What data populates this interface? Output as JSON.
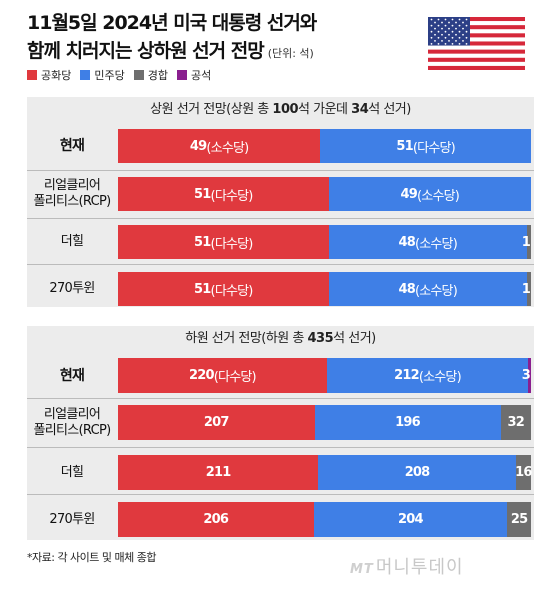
{
  "title_line1": "11월5일 2024년 미국 대통령 선거와",
  "title_line2": "함께 치러지는 상하원 선거 전망",
  "unit": "(단위: 석)",
  "legend": [
    {
      "label": "공화당",
      "color": "#e0393e"
    },
    {
      "label": "민주당",
      "color": "#3f7fe6"
    },
    {
      "label": "경합",
      "color": "#6e6e6e"
    },
    {
      "label": "공석",
      "color": "#8a1f8f"
    }
  ],
  "colors": {
    "rep": "#e0393e",
    "dem": "#3f7fe6",
    "toss": "#6e6e6e",
    "vacant": "#8a1f8f"
  },
  "chart_data": [
    {
      "type": "bar",
      "stacked": true,
      "orientation": "horizontal",
      "header": {
        "prefix": "상원 선거 전망(상원 총 ",
        "total": "100",
        "mid": "석 가운데 ",
        "contest": "34",
        "suffix": "석 선거)"
      },
      "total": 100,
      "rows": [
        {
          "label": "현재",
          "bold": true,
          "rep": 49,
          "dem": 51,
          "toss": 0,
          "vacant": 0,
          "rep_note": "(소수당)",
          "dem_note": "(다수당)"
        },
        {
          "label": "리얼클리어\n폴리티스(RCP)",
          "bold": false,
          "rep": 51,
          "dem": 49,
          "toss": 0,
          "vacant": 0,
          "rep_note": "(다수당)",
          "dem_note": "(소수당)"
        },
        {
          "label": "더힐",
          "bold": false,
          "rep": 51,
          "dem": 48,
          "toss": 1,
          "vacant": 0,
          "rep_note": "(다수당)",
          "dem_note": "(소수당)"
        },
        {
          "label": "270투윈",
          "bold": false,
          "rep": 51,
          "dem": 48,
          "toss": 1,
          "vacant": 0,
          "rep_note": "(다수당)",
          "dem_note": "(소수당)"
        }
      ]
    },
    {
      "type": "bar",
      "stacked": true,
      "orientation": "horizontal",
      "header": {
        "prefix": "하원 선거 전망(하원 총 ",
        "total": "435",
        "mid": "",
        "contest": "",
        "suffix": "석 선거)"
      },
      "total": 435,
      "rows": [
        {
          "label": "현재",
          "bold": true,
          "rep": 220,
          "dem": 212,
          "toss": 0,
          "vacant": 3,
          "rep_note": "(다수당)",
          "dem_note": "(소수당)"
        },
        {
          "label": "리얼클리어\n폴리티스(RCP)",
          "bold": false,
          "rep": 207,
          "dem": 196,
          "toss": 32,
          "vacant": 0,
          "rep_note": "",
          "dem_note": ""
        },
        {
          "label": "더힐",
          "bold": false,
          "rep": 211,
          "dem": 208,
          "toss": 16,
          "vacant": 0,
          "rep_note": "",
          "dem_note": ""
        },
        {
          "label": "270투윈",
          "bold": false,
          "rep": 206,
          "dem": 204,
          "toss": 25,
          "vacant": 0,
          "rep_note": "",
          "dem_note": ""
        }
      ]
    }
  ],
  "footnote": "*자료: 각 사이트 및 매체 종합",
  "logo": {
    "mark": "MT",
    "name": "머니투데이"
  }
}
